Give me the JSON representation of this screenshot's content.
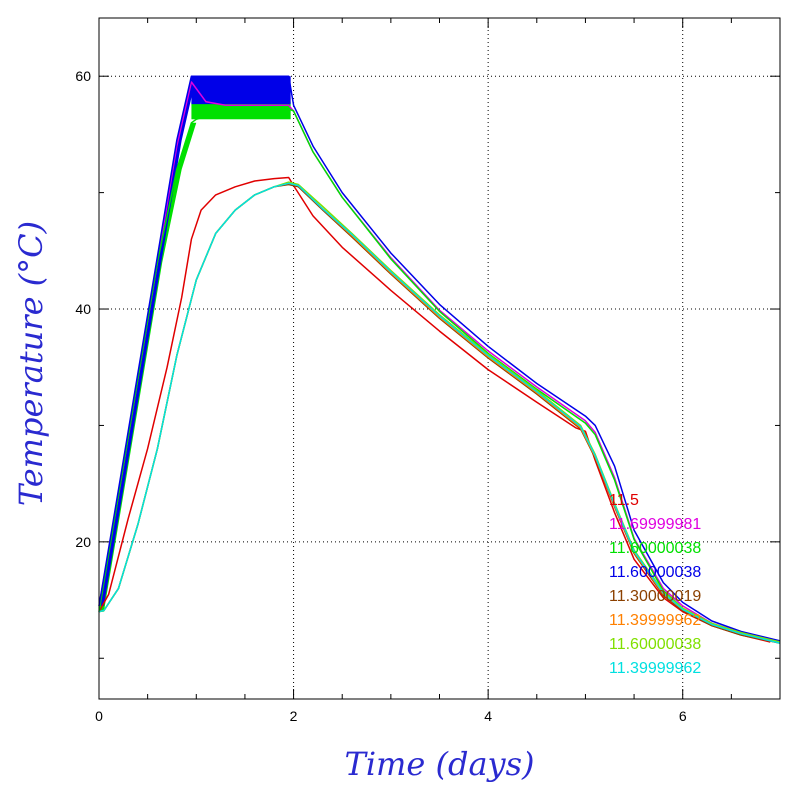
{
  "chart_data": {
    "type": "line",
    "xlabel": "Time (days)",
    "ylabel": "Temperature (°C)",
    "xlim": [
      0,
      7
    ],
    "ylim": [
      6.5,
      65
    ],
    "x_ticks": [
      0,
      2,
      4,
      6
    ],
    "x_tick_labels": [
      "0",
      "2",
      "4",
      "6"
    ],
    "y_ticks": [
      20,
      40,
      60
    ],
    "y_tick_labels": [
      "20",
      "40",
      "60"
    ],
    "x_minor_ticks": [
      0.5,
      1,
      1.5,
      2.5,
      3,
      3.5,
      4.5,
      5,
      5.5,
      6.5
    ],
    "y_minor_ticks": [
      10,
      30,
      50
    ],
    "grid": true,
    "legend_position": "bottom-right",
    "series": [
      {
        "name": "11.5",
        "color": "#e00000",
        "x": [
          0,
          0.1,
          0.3,
          0.5,
          0.7,
          0.85,
          0.95,
          1.05,
          1.2,
          1.4,
          1.6,
          1.8,
          1.95,
          2.0,
          2.2,
          2.5,
          3.0,
          3.5,
          4.0,
          4.5,
          4.9,
          5.0,
          5.1,
          5.3,
          5.5,
          5.8,
          6.0,
          6.3,
          6.6,
          6.9
        ],
        "y": [
          14,
          15.5,
          22,
          28,
          35,
          41,
          46,
          48.5,
          49.8,
          50.5,
          51,
          51.2,
          51.3,
          50.6,
          48,
          45.3,
          41.6,
          38.1,
          34.8,
          32,
          29.8,
          29.5,
          27,
          22.5,
          18.5,
          15.2,
          14,
          12.8,
          12,
          11.4
        ]
      },
      {
        "name": "11.69999981",
        "color": "#e000e0",
        "x": [
          0,
          0.2,
          0.4,
          0.6,
          0.8,
          0.95,
          1.1,
          1.3,
          1.5,
          1.7,
          1.95,
          2.0,
          2.2,
          2.5,
          3.0,
          3.5,
          4.0,
          4.5,
          5.0,
          5.1,
          5.3,
          5.5,
          5.8,
          6.0,
          6.3,
          6.6,
          7.0
        ],
        "y": [
          14.5,
          24,
          34,
          44,
          54,
          59.5,
          57.8,
          57.5,
          57.5,
          57.5,
          57.5,
          57,
          53.5,
          49.6,
          44.4,
          39.9,
          36.4,
          33.3,
          30.4,
          29.4,
          25.5,
          20.3,
          16,
          14.5,
          13,
          12.2,
          11.4
        ]
      },
      {
        "name": "11.60000038",
        "color": "#00e000",
        "x": [
          0,
          0.2,
          0.4,
          0.6,
          0.8,
          0.95,
          1.0,
          1.2,
          1.4,
          1.6,
          1.8,
          1.95,
          2.0,
          2.2,
          2.5,
          3.0,
          3.5,
          4.0,
          4.5,
          5.0,
          5.1,
          5.3,
          5.5,
          5.8,
          6.0,
          6.3,
          6.6,
          7.0
        ],
        "y": [
          14,
          24,
          34,
          44,
          52,
          56,
          56.3,
          56.8,
          57,
          57.1,
          57.2,
          57.2,
          57,
          53.5,
          49.6,
          44.3,
          39.8,
          36.2,
          33.1,
          30.2,
          29.2,
          25.3,
          20.2,
          15.8,
          14.3,
          12.9,
          12.1,
          11.3
        ]
      },
      {
        "name": "11.60000038",
        "color": "#0000e8",
        "x": [
          0,
          0.2,
          0.4,
          0.6,
          0.8,
          0.95,
          1.0,
          1.5,
          1.95,
          2.0,
          2.2,
          2.5,
          3.0,
          3.5,
          4.0,
          4.5,
          5.0,
          5.1,
          5.3,
          5.5,
          5.8,
          6.0,
          6.3,
          6.6,
          7.0
        ],
        "y": [
          14.5,
          24.5,
          34.5,
          44.5,
          54.5,
          60,
          60,
          60,
          60,
          57.5,
          54,
          50,
          44.8,
          40.4,
          36.8,
          33.6,
          30.8,
          30,
          26.5,
          21,
          16.5,
          14.8,
          13.2,
          12.3,
          11.5
        ]
      },
      {
        "name": "11.30000019",
        "color": "#8b4000",
        "x": [
          0,
          0.05,
          0.2,
          0.4,
          0.6,
          0.8,
          1.0,
          1.2,
          1.4,
          1.6,
          1.8,
          1.95,
          2.05,
          2.3,
          2.6,
          3.0,
          3.5,
          4.0,
          4.5,
          4.95,
          5.1,
          5.3,
          5.5,
          5.8,
          6.0,
          6.3,
          6.6,
          7.0
        ],
        "y": [
          14,
          14.1,
          16,
          21.5,
          28,
          36,
          42.5,
          46.5,
          48.5,
          49.8,
          50.5,
          50.7,
          50.5,
          48.5,
          46.2,
          43,
          39.2,
          35.8,
          32.7,
          29.7,
          27.2,
          23,
          19,
          15.4,
          14.1,
          12.8,
          12,
          11.3
        ]
      },
      {
        "name": "11.39999962",
        "color": "#ff8000",
        "x": [
          0,
          0.05,
          0.2,
          0.4,
          0.6,
          0.8,
          1.0,
          1.2,
          1.4,
          1.6,
          1.8,
          1.95,
          2.05,
          2.3,
          2.6,
          3.0,
          3.5,
          4.0,
          4.5,
          4.95,
          5.1,
          5.3,
          5.5,
          5.8,
          6.0,
          6.3,
          6.6,
          7.0
        ],
        "y": [
          14,
          14.1,
          16,
          21.5,
          28,
          36,
          42.5,
          46.5,
          48.5,
          49.8,
          50.5,
          50.8,
          50.6,
          48.6,
          46.3,
          43.1,
          39.3,
          35.9,
          32.8,
          29.8,
          27.3,
          23.1,
          19.1,
          15.5,
          14.2,
          12.9,
          12.1,
          11.4
        ]
      },
      {
        "name": "11.60000038",
        "color": "#80e000",
        "x": [
          0,
          0.05,
          0.2,
          0.4,
          0.6,
          0.8,
          1.0,
          1.2,
          1.4,
          1.6,
          1.8,
          1.95,
          2.05,
          2.3,
          2.6,
          3.0,
          3.5,
          4.0,
          4.5,
          4.95,
          5.1,
          5.3,
          5.5,
          5.8,
          6.0,
          6.3,
          6.6,
          7.0
        ],
        "y": [
          14,
          14.1,
          16,
          21.5,
          28,
          36,
          42.5,
          46.5,
          48.5,
          49.8,
          50.5,
          50.9,
          50.7,
          48.8,
          46.5,
          43.3,
          39.5,
          36.1,
          33,
          30,
          27.5,
          23.3,
          19.3,
          15.7,
          14.3,
          13,
          12.2,
          11.4
        ]
      },
      {
        "name": "11.39999962",
        "color": "#00e0e0",
        "x": [
          0,
          0.05,
          0.2,
          0.4,
          0.6,
          0.8,
          1.0,
          1.2,
          1.4,
          1.6,
          1.8,
          1.95,
          2.05,
          2.3,
          2.6,
          3.0,
          3.5,
          4.0,
          4.5,
          4.95,
          5.1,
          5.3,
          5.5,
          5.8,
          6.0,
          6.3,
          6.6,
          7.0
        ],
        "y": [
          14,
          14.1,
          16,
          21.5,
          28,
          36,
          42.5,
          46.5,
          48.5,
          49.8,
          50.5,
          50.8,
          50.6,
          48.6,
          46.4,
          43.2,
          39.4,
          36,
          32.9,
          29.9,
          27.4,
          23.2,
          19.2,
          15.6,
          14.2,
          12.9,
          12.1,
          11.3
        ]
      }
    ]
  }
}
